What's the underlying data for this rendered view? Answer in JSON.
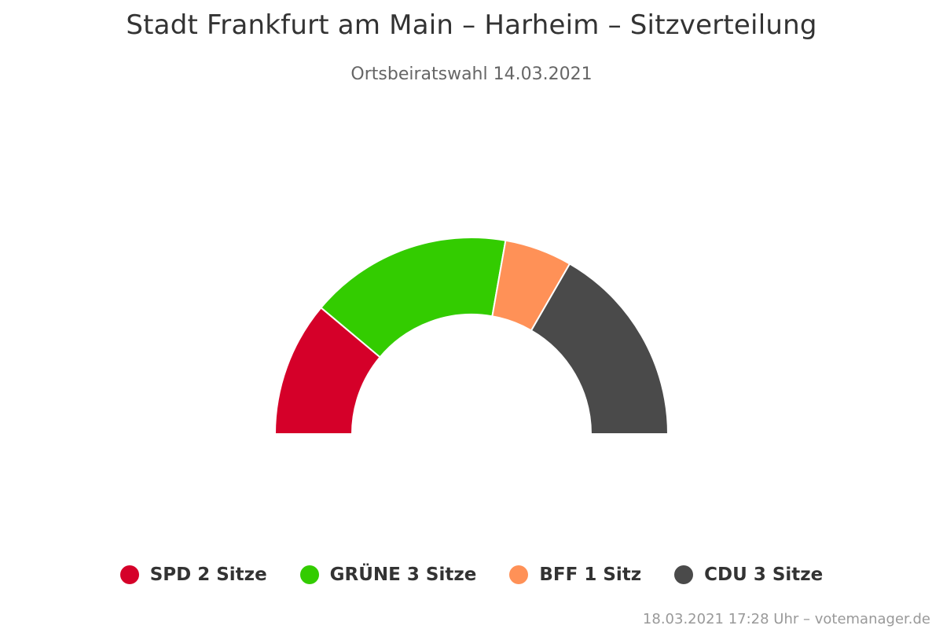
{
  "chart": {
    "title": "Stadt Frankfurt am Main – Harheim – Sitzverteilung",
    "subtitle": "Ortsbeiratswahl 14.03.2021",
    "credits": "18.03.2021 17:28 Uhr – votemanager.de"
  },
  "legend": {
    "items": [
      {
        "label": "SPD 2 Sitze",
        "color": "#d50029"
      },
      {
        "label": "GRÜNE 3 Sitze",
        "color": "#33cc00"
      },
      {
        "label": "BFF 1 Sitz",
        "color": "#ff9157"
      },
      {
        "label": "CDU 3 Sitze",
        "color": "#4a4a4a"
      }
    ]
  },
  "chart_data": {
    "type": "pie",
    "variant": "semicircle",
    "title": "Stadt Frankfurt am Main – Harheim – Sitzverteilung",
    "subtitle": "Ortsbeiratswahl 14.03.2021",
    "categories": [
      "SPD",
      "GRÜNE",
      "BFF",
      "CDU"
    ],
    "values": [
      2,
      3,
      1,
      3
    ],
    "colors": [
      "#d50029",
      "#33cc00",
      "#ff9157",
      "#4a4a4a"
    ],
    "legend_position": "bottom"
  }
}
